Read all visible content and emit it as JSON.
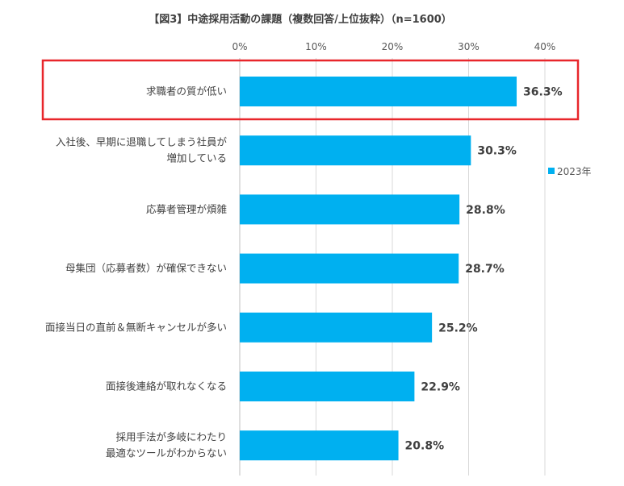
{
  "chart_data": {
    "type": "bar",
    "orientation": "horizontal",
    "title": "【図3】中途採用活動の課題（複数回答/上位抜粋）（n=1600）",
    "categories": [
      [
        "求職者の質が低い"
      ],
      [
        "入社後、早期に退職してしまう社員が",
        "増加している"
      ],
      [
        "応募者管理が煩雑"
      ],
      [
        "母集団（応募者数）が確保できない"
      ],
      [
        "面接当日の直前＆無断キャンセルが多い"
      ],
      [
        "面接後連絡が取れなくなる"
      ],
      [
        "採用手法が多岐にわたり",
        "最適なツールがわからない"
      ]
    ],
    "series": [
      {
        "name": "2023年",
        "values": [
          36.3,
          30.3,
          28.8,
          28.7,
          25.2,
          22.9,
          20.8
        ]
      }
    ],
    "value_labels": [
      "36.3%",
      "30.3%",
      "28.8%",
      "28.7%",
      "25.2%",
      "22.9%",
      "20.8%"
    ],
    "x_ticks": [
      "0%",
      "10%",
      "20%",
      "30%",
      "40%"
    ],
    "xlim": [
      0,
      40
    ],
    "grid": true,
    "legend_position": "right",
    "highlight_index": 0,
    "colors": {
      "bar": "#00B0F0",
      "highlight": "#E8262B",
      "grid": "#D9D9D9",
      "axis": "#BFBFBF"
    }
  }
}
